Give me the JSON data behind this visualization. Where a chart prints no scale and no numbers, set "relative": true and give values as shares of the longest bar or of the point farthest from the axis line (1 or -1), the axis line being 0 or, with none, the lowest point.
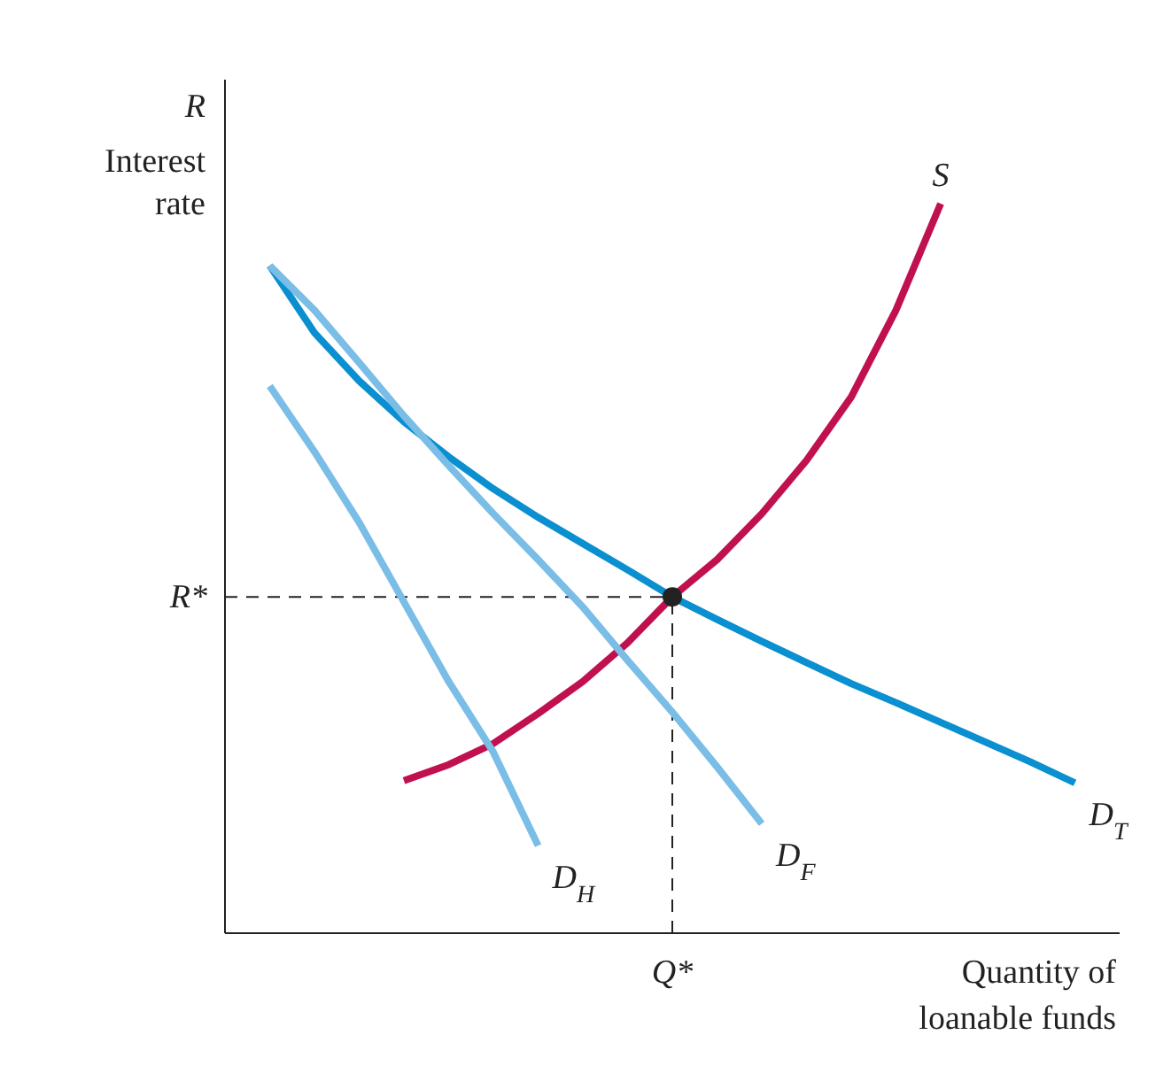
{
  "chart_data": {
    "type": "line",
    "relative": true,
    "ylabel": "Interest rate",
    "xlabel": "Quantity of loanable funds",
    "annotations": [
      "R"
    ],
    "categories": [
      null,
      null,
      null,
      null,
      null,
      null,
      null,
      null,
      null,
      null,
      null,
      null,
      null,
      null,
      null,
      null,
      null,
      null,
      null,
      null,
      null
    ],
    "series": [
      {
        "name": "S",
        "color": "#c0104f",
        "values": [
          null,
          null,
          null,
          null,
          0.209,
          0.231,
          0.26,
          0.301,
          0.345,
          0.398,
          0.461,
          0.512,
          0.575,
          0.648,
          0.735,
          0.854,
          1,
          null,
          null,
          null,
          null
        ]
      },
      {
        "name": "D$_{T}$",
        "color": "#0a8fd0",
        "values": [
          null,
          0.915,
          0.823,
          0.757,
          0.701,
          0.653,
          0.609,
          0.57,
          0.534,
          0.498,
          0.461,
          0.43,
          0.4,
          0.371,
          0.342,
          0.316,
          0.289,
          0.262,
          0.235,
          0.206,
          null
        ]
      },
      {
        "name": "D$_{F}$",
        "color": "#7abde6",
        "values": [
          null,
          0.915,
          0.854,
          0.782,
          0.709,
          0.641,
          0.575,
          0.512,
          0.447,
          0.374,
          0.303,
          0.228,
          0.15,
          null,
          null,
          null,
          null,
          null,
          null,
          null,
          null
        ]
      },
      {
        "name": "D$_{H}$",
        "color": "#7abde6",
        "values": [
          null,
          0.75,
          0.66,
          0.563,
          0.454,
          0.345,
          0.248,
          0.12,
          null,
          null,
          null,
          null,
          null,
          null,
          null,
          null,
          null,
          null,
          null,
          null,
          null
        ]
      }
    ],
    "ref_lines": [
      {
        "axis": "y",
        "label": "R*",
        "line_style": "dashed"
      },
      {
        "axis": "x",
        "label": "Q*",
        "line_style": "dashed"
      }
    ],
    "line_style": "solid",
    "marker": "none",
    "legend": false
  }
}
